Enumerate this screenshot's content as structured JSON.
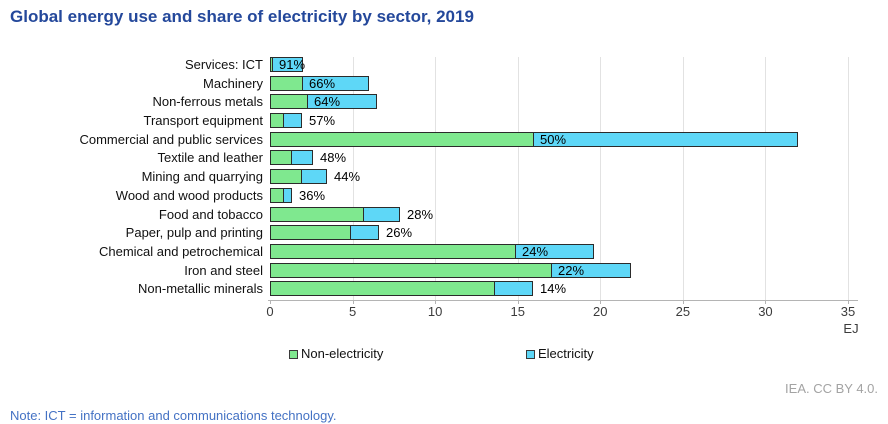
{
  "title": "Global energy use and share of electricity by sector, 2019",
  "credit": "IEA. CC BY 4.0.",
  "note": "Note: ICT = information and communications technology.",
  "colors": {
    "title": "#24489b",
    "non_electricity_green": "#7fe88f",
    "electricity_blue": "#5ed7f7",
    "bar_border": "#2b2b2b",
    "gridline": "#e2e2e2",
    "axis": "#b4b4b4",
    "note_blue": "#4472c4",
    "credit_gray": "#a3a3a3"
  },
  "legend": [
    {
      "label": "Non-electricity",
      "color": "#7fe88f"
    },
    {
      "label": "Electricity",
      "color": "#5ed7f7"
    }
  ],
  "axis": {
    "unit": "EJ",
    "ticks": [
      0,
      5,
      10,
      15,
      20,
      25,
      30,
      35
    ]
  },
  "chart_data": {
    "type": "bar",
    "orientation": "horizontal",
    "stacked": true,
    "title": "Global energy use and share of electricity by sector, 2019",
    "xlabel": "EJ",
    "xlim": [
      0,
      35
    ],
    "grid": "vertical-only",
    "legend_position": "bottom",
    "categories": [
      "Services: ICT",
      "Machinery",
      "Non-ferrous metals",
      "Transport equipment",
      "Commercial and public services",
      "Textile and leather",
      "Mining and quarrying",
      "Wood and wood products",
      "Food and tobacco",
      "Paper, pulp and printing",
      "Chemical and petrochemical",
      "Iron and steel",
      "Non-metallic minerals"
    ],
    "series": [
      {
        "name": "Non-electricity",
        "unit": "EJ",
        "values": [
          0.2,
          2.0,
          2.3,
          0.85,
          16.0,
          1.35,
          1.95,
          0.85,
          5.7,
          4.9,
          14.9,
          17.1,
          13.6
        ]
      },
      {
        "name": "Electricity",
        "unit": "EJ",
        "values": [
          1.8,
          4.0,
          4.2,
          1.1,
          16.0,
          1.25,
          1.5,
          0.48,
          2.2,
          1.7,
          4.7,
          4.8,
          2.3
        ]
      }
    ],
    "electricity_share_labels": [
      "91%",
      "66%",
      "64%",
      "57%",
      "50%",
      "48%",
      "44%",
      "36%",
      "28%",
      "26%",
      "24%",
      "22%",
      "14%"
    ],
    "share_label_placement": [
      "inside",
      "inside",
      "inside",
      "outside",
      "inside",
      "outside",
      "outside",
      "outside",
      "outside",
      "outside",
      "inside",
      "inside",
      "outside"
    ]
  }
}
